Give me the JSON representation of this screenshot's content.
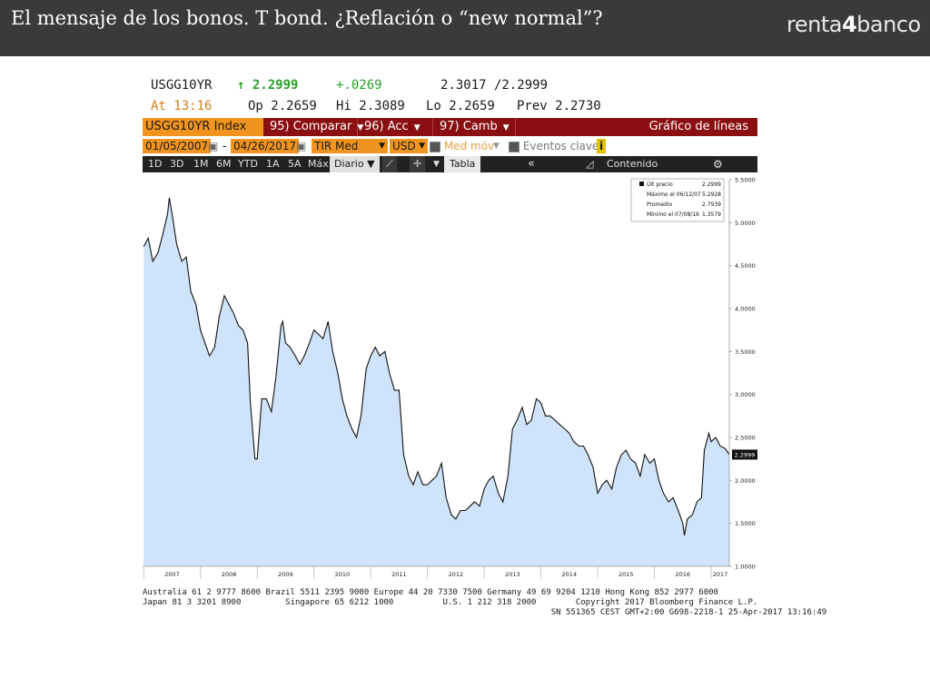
{
  "header": {
    "title": "El mensaje de los bonos. T bond. ¿Reflación o “new normal”?",
    "logo": {
      "pre": "renta",
      "digit": "4",
      "post": "banco"
    }
  },
  "quote": {
    "ticker": "USGG10YR",
    "last_arrow": "↑",
    "last": "2.2999",
    "change": "+.0269",
    "bid_ask": "2.3017 /2.2999",
    "at": "At 13:16",
    "open": "Op 2.2659",
    "high": "Hi 2.3089",
    "low": "Lo 2.2659",
    "prev": "Prev  2.2730"
  },
  "toolbar1": {
    "index": "USGG10YR Index",
    "compare": "95) Comparar",
    "acc": "96) Acc",
    "camb": "97) Camb",
    "title": "Gráfico de líneas"
  },
  "toolbar2": {
    "start_date": "01/05/2007",
    "end_date": "04/26/2017",
    "field": "TIR Med",
    "currency": "USD",
    "moving_avg": "Med móv",
    "key_events": "Eventos clave",
    "info": "i"
  },
  "toolbar3": {
    "periods": [
      "1D",
      "3D",
      "1M",
      "6M",
      "YTD",
      "1A",
      "5A",
      "Máx"
    ],
    "frequency": "Diario ▼",
    "table": "Tabla",
    "collapse": "«",
    "content": "Contenido",
    "settings_glyph": "⚙"
  },
  "chart_data": {
    "type": "area",
    "legend": {
      "placement": "top-right",
      "rows": [
        {
          "label": "Últ precio",
          "value": "2.2999"
        },
        {
          "label": "Máximo el 06/12/07",
          "value": "5.2928"
        },
        {
          "label": "Promedio",
          "value": "2.7939"
        },
        {
          "label": "Mínimo el 07/08/16",
          "value": "1.3579"
        }
      ]
    },
    "last_value_label": "2.2999",
    "ylim": [
      1.0,
      5.5
    ],
    "xlim": [
      2006.98,
      2017.32
    ],
    "y_ticks": [
      "5.5000",
      "5.0000",
      "4.5000",
      "4.0000",
      "3.5000",
      "3.0000",
      "2.5000",
      "2.0000",
      "1.5000",
      "1.0000"
    ],
    "x_ticks": [
      "2007",
      "2008",
      "2009",
      "2010",
      "2011",
      "2012",
      "2013",
      "2014",
      "2015",
      "2016",
      "2017"
    ],
    "x": [
      2007.0,
      2007.08,
      2007.16,
      2007.25,
      2007.33,
      2007.42,
      2007.45,
      2007.5,
      2007.58,
      2007.67,
      2007.75,
      2007.83,
      2007.92,
      2008.0,
      2008.08,
      2008.16,
      2008.25,
      2008.33,
      2008.42,
      2008.5,
      2008.58,
      2008.67,
      2008.75,
      2008.83,
      2008.88,
      2008.96,
      2009.0,
      2009.08,
      2009.16,
      2009.25,
      2009.33,
      2009.42,
      2009.45,
      2009.5,
      2009.58,
      2009.67,
      2009.75,
      2009.83,
      2009.92,
      2010.0,
      2010.08,
      2010.16,
      2010.25,
      2010.33,
      2010.42,
      2010.5,
      2010.58,
      2010.67,
      2010.75,
      2010.83,
      2010.92,
      2011.0,
      2011.08,
      2011.16,
      2011.25,
      2011.33,
      2011.42,
      2011.5,
      2011.58,
      2011.67,
      2011.75,
      2011.83,
      2011.92,
      2012.0,
      2012.08,
      2012.16,
      2012.25,
      2012.33,
      2012.42,
      2012.5,
      2012.58,
      2012.67,
      2012.75,
      2012.83,
      2012.92,
      2013.0,
      2013.08,
      2013.16,
      2013.25,
      2013.33,
      2013.42,
      2013.5,
      2013.58,
      2013.67,
      2013.75,
      2013.83,
      2013.92,
      2014.0,
      2014.08,
      2014.16,
      2014.25,
      2014.33,
      2014.42,
      2014.5,
      2014.58,
      2014.67,
      2014.75,
      2014.83,
      2014.92,
      2015.0,
      2015.08,
      2015.16,
      2015.25,
      2015.33,
      2015.42,
      2015.5,
      2015.58,
      2015.67,
      2015.75,
      2015.83,
      2015.92,
      2016.0,
      2016.08,
      2016.16,
      2016.25,
      2016.33,
      2016.42,
      2016.5,
      2016.53,
      2016.58,
      2016.67,
      2016.75,
      2016.83,
      2016.88,
      2016.96,
      2017.0,
      2017.08,
      2017.16,
      2017.25,
      2017.32
    ],
    "y": [
      4.72,
      4.82,
      4.55,
      4.65,
      4.85,
      5.1,
      5.29,
      5.1,
      4.75,
      4.55,
      4.6,
      4.2,
      4.05,
      3.75,
      3.6,
      3.45,
      3.55,
      3.9,
      4.15,
      4.05,
      3.95,
      3.8,
      3.75,
      3.6,
      2.9,
      2.25,
      2.25,
      2.95,
      2.95,
      2.8,
      3.2,
      3.8,
      3.85,
      3.6,
      3.55,
      3.45,
      3.35,
      3.45,
      3.6,
      3.75,
      3.7,
      3.65,
      3.85,
      3.5,
      3.25,
      2.95,
      2.75,
      2.6,
      2.5,
      2.75,
      3.3,
      3.45,
      3.55,
      3.45,
      3.5,
      3.25,
      3.05,
      3.05,
      2.3,
      2.05,
      1.95,
      2.1,
      1.95,
      1.95,
      2.0,
      2.05,
      2.2,
      1.8,
      1.6,
      1.55,
      1.65,
      1.65,
      1.7,
      1.75,
      1.7,
      1.9,
      2.0,
      2.05,
      1.85,
      1.75,
      2.05,
      2.6,
      2.7,
      2.85,
      2.65,
      2.7,
      2.95,
      2.9,
      2.75,
      2.75,
      2.7,
      2.65,
      2.6,
      2.55,
      2.45,
      2.4,
      2.4,
      2.3,
      2.15,
      1.85,
      1.95,
      2.0,
      1.9,
      2.15,
      2.3,
      2.35,
      2.25,
      2.2,
      2.05,
      2.3,
      2.2,
      2.25,
      2.0,
      1.85,
      1.75,
      1.8,
      1.65,
      1.5,
      1.36,
      1.55,
      1.6,
      1.75,
      1.8,
      2.35,
      2.55,
      2.45,
      2.5,
      2.4,
      2.37,
      2.3
    ]
  },
  "footer": {
    "line1": "Australia 61 2 9777 8600 Brazil 5511 2395 9000 Europe 44 20 7330 7500 Germany 49 69 9204 1210 Hong Kong 852 2977 6000",
    "line2": "Japan 81 3 3201 8900         Singapore 65 6212 1000          U.S. 1 212 318 2000        Copyright 2017 Bloomberg Finance L.P.",
    "line3": "                                                                                   SN 551365 CEST GMT+2:00 G698-2218-1 25-Apr-2017 13:16:49"
  }
}
